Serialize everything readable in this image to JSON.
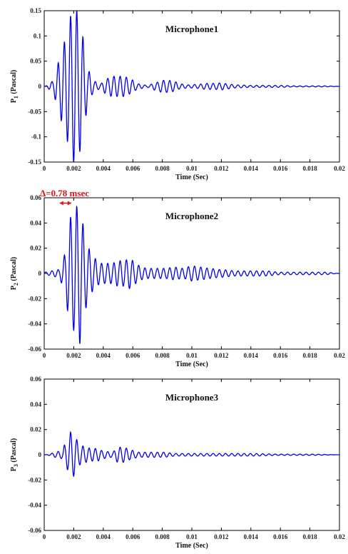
{
  "chart_data": [
    {
      "type": "line",
      "title": "Microphone1",
      "xlabel": "Time (Sec)",
      "ylabel_main": "P",
      "ylabel_sub": "1",
      "ylabel_rest": " (Pascal)",
      "xlim": [
        0,
        0.02
      ],
      "ylim": [
        -0.15,
        0.15
      ],
      "xticks": [
        0,
        0.002,
        0.004,
        0.006,
        0.008,
        0.01,
        0.012,
        0.014,
        0.016,
        0.018,
        0.02
      ],
      "xtick_labels": [
        "0",
        "0.002",
        "0.004",
        "0.006",
        "0.008",
        "0.01",
        "0.012",
        "0.014",
        "0.016",
        "0.018",
        "0.02"
      ],
      "yticks": [
        -0.15,
        -0.1,
        -0.05,
        0,
        0.05,
        0.1,
        0.15
      ],
      "ytick_labels": [
        "-0.15",
        "-0.1",
        "-0.05",
        "0",
        "0.05",
        "0.1",
        "0.15"
      ],
      "grid": false,
      "color": "#0000ee",
      "series": [
        {
          "x": [
            0,
            0.0006,
            0.0008,
            0.001,
            0.0012,
            0.0014,
            0.0016,
            0.0018,
            0.002,
            0.0022,
            0.0024,
            0.0026,
            0.0028,
            0.003,
            0.0034,
            0.0038,
            0.0042,
            0.0046,
            0.005,
            0.0054,
            0.0058,
            0.0064,
            0.007,
            0.0076,
            0.008,
            0.0084,
            0.0088,
            0.0092,
            0.0098,
            0.0104,
            0.011,
            0.0116,
            0.012,
            0.0124,
            0.013,
            0.014,
            0.015,
            0.016,
            0.017,
            0.018,
            0.019,
            0.02
          ],
          "y": [
            0,
            0.01,
            0.03,
            -0.05,
            0.07,
            -0.09,
            0.11,
            -0.14,
            0.15,
            -0.15,
            0.13,
            -0.1,
            0.06,
            -0.03,
            0.01,
            0.005,
            -0.015,
            0.02,
            -0.02,
            0.02,
            -0.015,
            0.005,
            0.002,
            -0.008,
            0.012,
            -0.012,
            0.01,
            -0.005,
            0.003,
            -0.004,
            0.006,
            -0.006,
            0.007,
            -0.005,
            0.003,
            -0.002,
            0.002,
            -0.002,
            0.001,
            -0.001,
            0.001,
            0
          ]
        }
      ]
    },
    {
      "type": "line",
      "title": "Microphone2",
      "xlabel": "Time (Sec)",
      "ylabel_main": "P",
      "ylabel_sub": "2",
      "ylabel_rest": " (Pascal)",
      "xlim": [
        0,
        0.02
      ],
      "ylim": [
        -0.06,
        0.06
      ],
      "xticks": [
        0,
        0.002,
        0.004,
        0.006,
        0.008,
        0.01,
        0.012,
        0.014,
        0.016,
        0.018,
        0.02
      ],
      "xtick_labels": [
        "0",
        "0.002",
        "0.004",
        "0.006",
        "0.008",
        "0.01",
        "0.012",
        "0.014",
        "0.016",
        "0.018",
        "0.02"
      ],
      "yticks": [
        -0.06,
        -0.04,
        -0.02,
        0,
        0.02,
        0.04,
        0.06
      ],
      "ytick_labels": [
        "-0.06",
        "-0.04",
        "-0.02",
        "0",
        "0.02",
        "0.04",
        "0.06"
      ],
      "grid": false,
      "color": "#0000ee",
      "annotation": {
        "text": "Δ=0.78 msec",
        "color": "#e01010",
        "x_from": 0.00105,
        "x_to": 0.00183,
        "y": 0.058
      },
      "series": [
        {
          "x": [
            0,
            0.001,
            0.0012,
            0.0014,
            0.0016,
            0.0018,
            0.002,
            0.0022,
            0.0024,
            0.0026,
            0.0028,
            0.003,
            0.0032,
            0.0034,
            0.0038,
            0.0042,
            0.0046,
            0.005,
            0.0054,
            0.0058,
            0.0062,
            0.0066,
            0.007,
            0.0076,
            0.0082,
            0.0088,
            0.0094,
            0.01,
            0.0106,
            0.0112,
            0.012,
            0.013,
            0.014,
            0.015,
            0.016,
            0.017,
            0.018,
            0.019,
            0.02
          ],
          "y": [
            0.001,
            0.003,
            -0.008,
            0.015,
            -0.03,
            0.045,
            -0.045,
            0.053,
            -0.056,
            0.04,
            -0.028,
            0.02,
            -0.015,
            0.012,
            -0.008,
            0.008,
            -0.008,
            0.01,
            -0.01,
            0.012,
            -0.008,
            0.005,
            -0.004,
            0.004,
            -0.004,
            0.005,
            -0.004,
            0.006,
            -0.005,
            0.004,
            -0.003,
            0.002,
            -0.002,
            0.002,
            -0.001,
            0.001,
            -0.001,
            0.001,
            0
          ]
        }
      ]
    },
    {
      "type": "line",
      "title": "Microphone3",
      "xlabel": "Time (Sec)",
      "ylabel_main": "P",
      "ylabel_sub": "3",
      "ylabel_rest": " (Pascal)",
      "xlim": [
        0,
        0.02
      ],
      "ylim": [
        -0.06,
        0.06
      ],
      "xticks": [
        0,
        0.002,
        0.004,
        0.006,
        0.008,
        0.01,
        0.012,
        0.014,
        0.016,
        0.018,
        0.02
      ],
      "xtick_labels": [
        "0",
        "0.002",
        "0.004",
        "0.006",
        "0.008",
        "0.01",
        "0.012",
        "0.014",
        "0.016",
        "0.018",
        "0.02"
      ],
      "yticks": [
        -0.06,
        -0.04,
        -0.02,
        0,
        0.02,
        0.04,
        0.06
      ],
      "ytick_labels": [
        "-0.06",
        "-0.04",
        "-0.02",
        "0",
        "0.02",
        "0.04",
        "0.06"
      ],
      "grid": false,
      "color": "#0000ee",
      "series": [
        {
          "x": [
            0,
            0.0012,
            0.0014,
            0.0016,
            0.0018,
            0.002,
            0.0022,
            0.0024,
            0.0026,
            0.0028,
            0.0032,
            0.0036,
            0.004,
            0.0046,
            0.005,
            0.0054,
            0.0058,
            0.0064,
            0.0072,
            0.008,
            0.009,
            0.01,
            0.012,
            0.014,
            0.016,
            0.018,
            0.02
          ],
          "y": [
            0,
            0.003,
            -0.008,
            0.012,
            -0.018,
            0.017,
            -0.012,
            0.008,
            -0.007,
            0.006,
            -0.005,
            0.005,
            -0.003,
            0.002,
            0.006,
            -0.006,
            0.004,
            -0.002,
            0.002,
            -0.002,
            0.001,
            -0.001,
            0.001,
            -0.001,
            0.0005,
            -0.0005,
            0
          ]
        }
      ]
    }
  ]
}
